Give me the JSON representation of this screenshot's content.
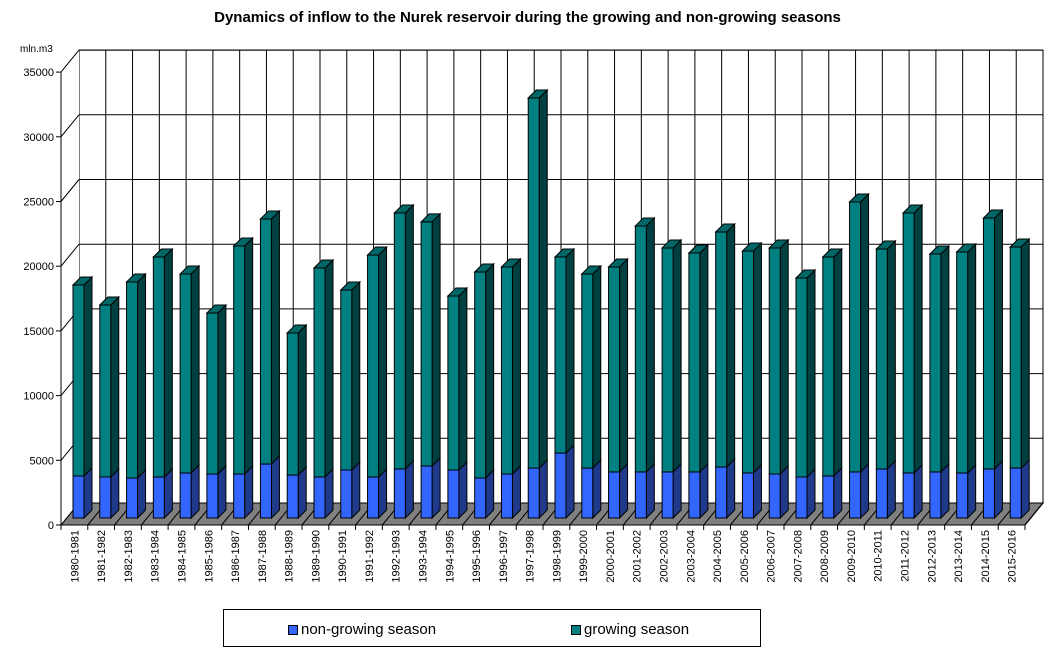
{
  "chart_data": {
    "type": "bar",
    "stacked": true,
    "three_d": true,
    "title": "Dynamics of inflow to the Nurek reservoir during the growing and non-growing seasons",
    "xlabel": "",
    "ylabel": "mln.m3",
    "ylim": [
      0,
      35000
    ],
    "yticks": [
      0,
      5000,
      10000,
      15000,
      20000,
      25000,
      30000,
      35000
    ],
    "grid": true,
    "legend_position": "bottom",
    "categories": [
      "1980-1981",
      "1981-1982",
      "1982-1983",
      "1983-1984",
      "1984-1985",
      "1985-1986",
      "1986-1987",
      "1987-1988",
      "1988-1989",
      "1989-1990",
      "1990-1991",
      "1991-1992",
      "1992-1993",
      "1993-1994",
      "1994-1995",
      "1995-1996",
      "1996-1997",
      "1997-1998",
      "1998-1999",
      "1999-2000",
      "2000-2001",
      "2001-2002",
      "2002-2003",
      "2003-2004",
      "2004-2005",
      "2005-2006",
      "2006-2007",
      "2007-2008",
      "2008-2009",
      "2009-2010",
      "2010-2011",
      "2011-2012",
      "2012-2013",
      "2013-2014",
      "2014-2015",
      "2015-2016"
    ],
    "series": [
      {
        "name": "non-growing season",
        "color": "#3366ff",
        "side_color": "#1f3a8a",
        "values": [
          3250,
          3170,
          3090,
          3170,
          3480,
          3400,
          3400,
          4170,
          3320,
          3170,
          3710,
          3170,
          3790,
          4020,
          3710,
          3090,
          3400,
          3860,
          5020,
          3860,
          3560,
          3560,
          3560,
          3560,
          3940,
          3480,
          3400,
          3170,
          3250,
          3560,
          3790,
          3480,
          3560,
          3480,
          3790,
          3860
        ]
      },
      {
        "name": "growing season",
        "color": "#008080",
        "side_color": "#004040",
        "values": [
          14760,
          13290,
          15150,
          17000,
          15380,
          12440,
          17620,
          18940,
          10980,
          16150,
          13910,
          17150,
          19780,
          18860,
          13450,
          15920,
          16000,
          28600,
          15150,
          15000,
          15840,
          19010,
          17310,
          16920,
          18160,
          17150,
          17470,
          15380,
          16920,
          20860,
          17000,
          20090,
          16840,
          17080,
          19390,
          17080
        ]
      }
    ]
  },
  "legend": {
    "items": [
      {
        "label": "non-growing season",
        "color": "#3366ff"
      },
      {
        "label": "growing season",
        "color": "#008080"
      }
    ]
  }
}
